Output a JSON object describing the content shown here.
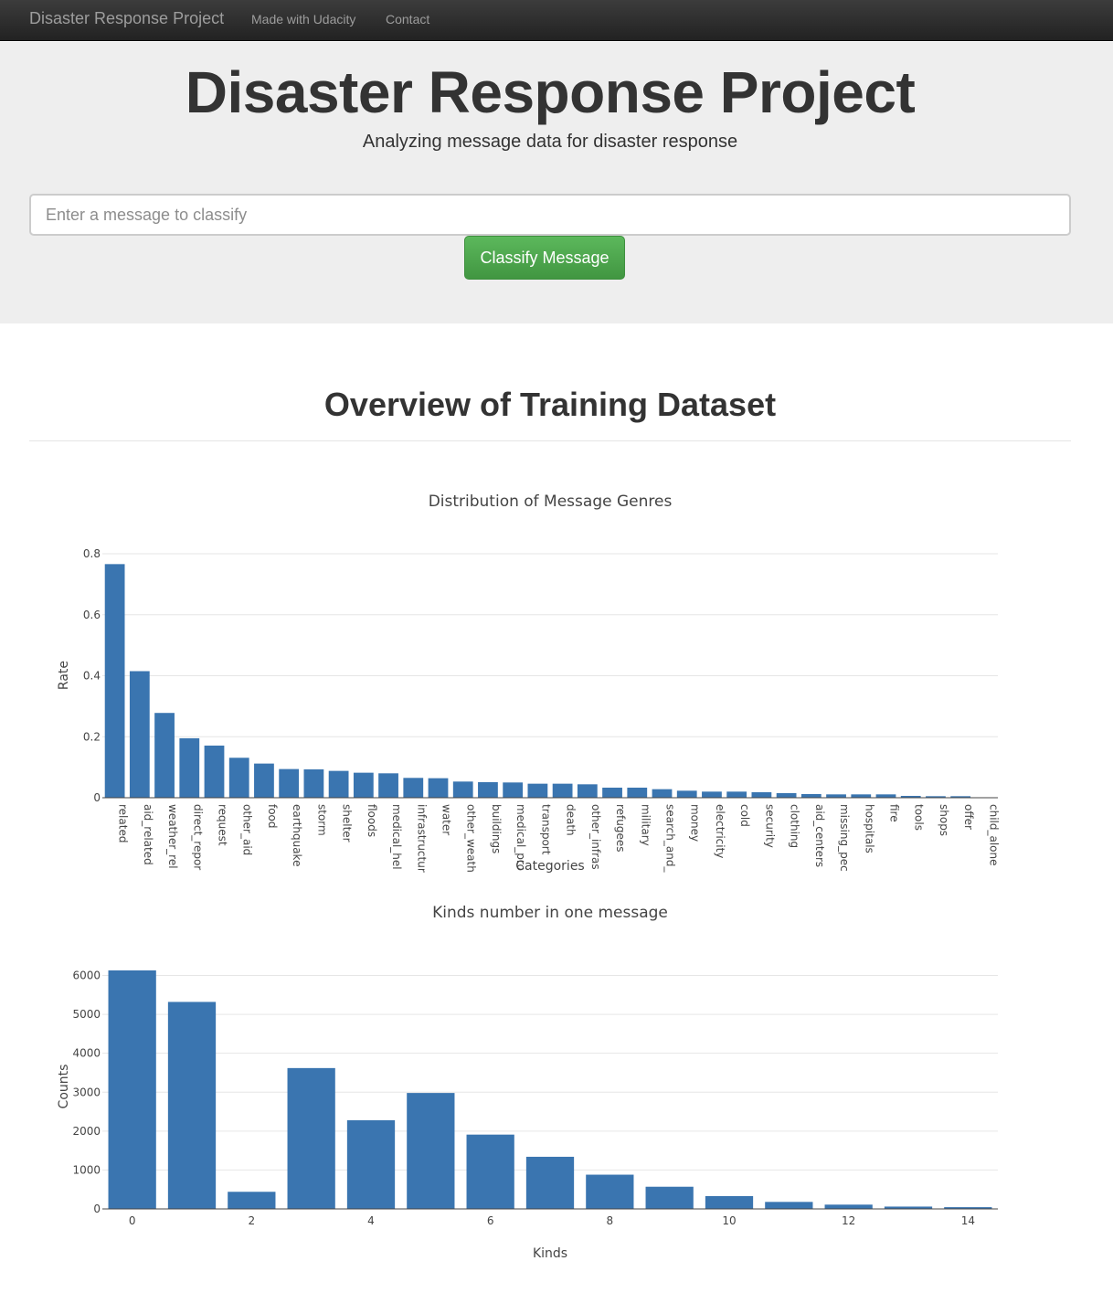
{
  "navbar": {
    "brand": "Disaster Response Project",
    "links": [
      "Made with Udacity",
      "Contact"
    ]
  },
  "jumbotron": {
    "title": "Disaster Response Project",
    "subtitle": "Analyzing message data for disaster response",
    "input_placeholder": "Enter a message to classify",
    "button_label": "Classify Message"
  },
  "section": {
    "title": "Overview of Training Dataset"
  },
  "colors": {
    "bar": "#3a75b0",
    "button": "#5cb85c",
    "navbar": "#222222"
  },
  "chart_data": [
    {
      "type": "bar",
      "title": "Distribution of Message Genres",
      "xlabel": "Categories",
      "ylabel": "Rate",
      "ylim": [
        0,
        0.8
      ],
      "yticks": [
        0,
        0.2,
        0.4,
        0.6,
        0.8
      ],
      "grid": true,
      "categories": [
        "related",
        "aid_related",
        "weather_rel",
        "direct_repor",
        "request",
        "other_aid",
        "food",
        "earthquake",
        "storm",
        "shelter",
        "floods",
        "medical_hel",
        "infrastructur",
        "water",
        "other_weath",
        "buildings",
        "medical_pro",
        "transport",
        "death",
        "other_infras",
        "refugees",
        "military",
        "search_and_",
        "money",
        "electricity",
        "cold",
        "security",
        "clothing",
        "aid_centers",
        "missing_pec",
        "hospitals",
        "fire",
        "tools",
        "shops",
        "offer",
        "child_alone"
      ],
      "values": [
        0.766,
        0.415,
        0.278,
        0.195,
        0.171,
        0.131,
        0.112,
        0.094,
        0.093,
        0.088,
        0.082,
        0.08,
        0.065,
        0.064,
        0.053,
        0.051,
        0.05,
        0.046,
        0.046,
        0.044,
        0.033,
        0.033,
        0.028,
        0.023,
        0.02,
        0.02,
        0.018,
        0.015,
        0.012,
        0.011,
        0.011,
        0.011,
        0.006,
        0.005,
        0.005,
        0.0
      ]
    },
    {
      "type": "bar",
      "title": "Kinds number in one message",
      "xlabel": "Kinds",
      "ylabel": "Counts",
      "ylim": [
        0,
        6200
      ],
      "yticks": [
        0,
        1000,
        2000,
        3000,
        4000,
        5000,
        6000
      ],
      "xticks": [
        0,
        2,
        4,
        6,
        8,
        10,
        12,
        14
      ],
      "grid": true,
      "categories": [
        0,
        1,
        2,
        3,
        4,
        5,
        6,
        7,
        8,
        9,
        10,
        11,
        12,
        13,
        14
      ],
      "values": [
        6130,
        5320,
        440,
        3620,
        2280,
        2980,
        1910,
        1340,
        880,
        570,
        330,
        180,
        110,
        60,
        45
      ]
    }
  ]
}
